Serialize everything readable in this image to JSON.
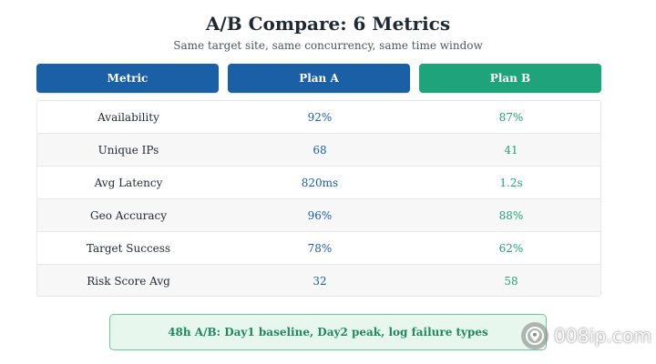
{
  "header": {
    "title": "A/B Compare: 6 Metrics",
    "subtitle": "Same target site, same concurrency, same time window"
  },
  "columns": {
    "metric": "Metric",
    "plan_a": "Plan A",
    "plan_b": "Plan B"
  },
  "rows": [
    {
      "metric": "Availability",
      "plan_a": "92%",
      "plan_b": "87%"
    },
    {
      "metric": "Unique IPs",
      "plan_a": "68",
      "plan_b": "41"
    },
    {
      "metric": "Avg Latency",
      "plan_a": "820ms",
      "plan_b": "1.2s"
    },
    {
      "metric": "Geo Accuracy",
      "plan_a": "96%",
      "plan_b": "88%"
    },
    {
      "metric": "Target Success",
      "plan_a": "78%",
      "plan_b": "62%"
    },
    {
      "metric": "Risk Score Avg",
      "plan_a": "32",
      "plan_b": "58"
    }
  ],
  "note": "48h A/B: Day1 baseline, Day2 peak, log failure types",
  "watermark": {
    "text": "008ip.com",
    "icon": "watermark-logo-icon"
  },
  "colors": {
    "plan_a": "#1b5fa5",
    "plan_b": "#1ea37a",
    "note_bg": "#e8f7ee",
    "note_border": "#6cc79a"
  }
}
